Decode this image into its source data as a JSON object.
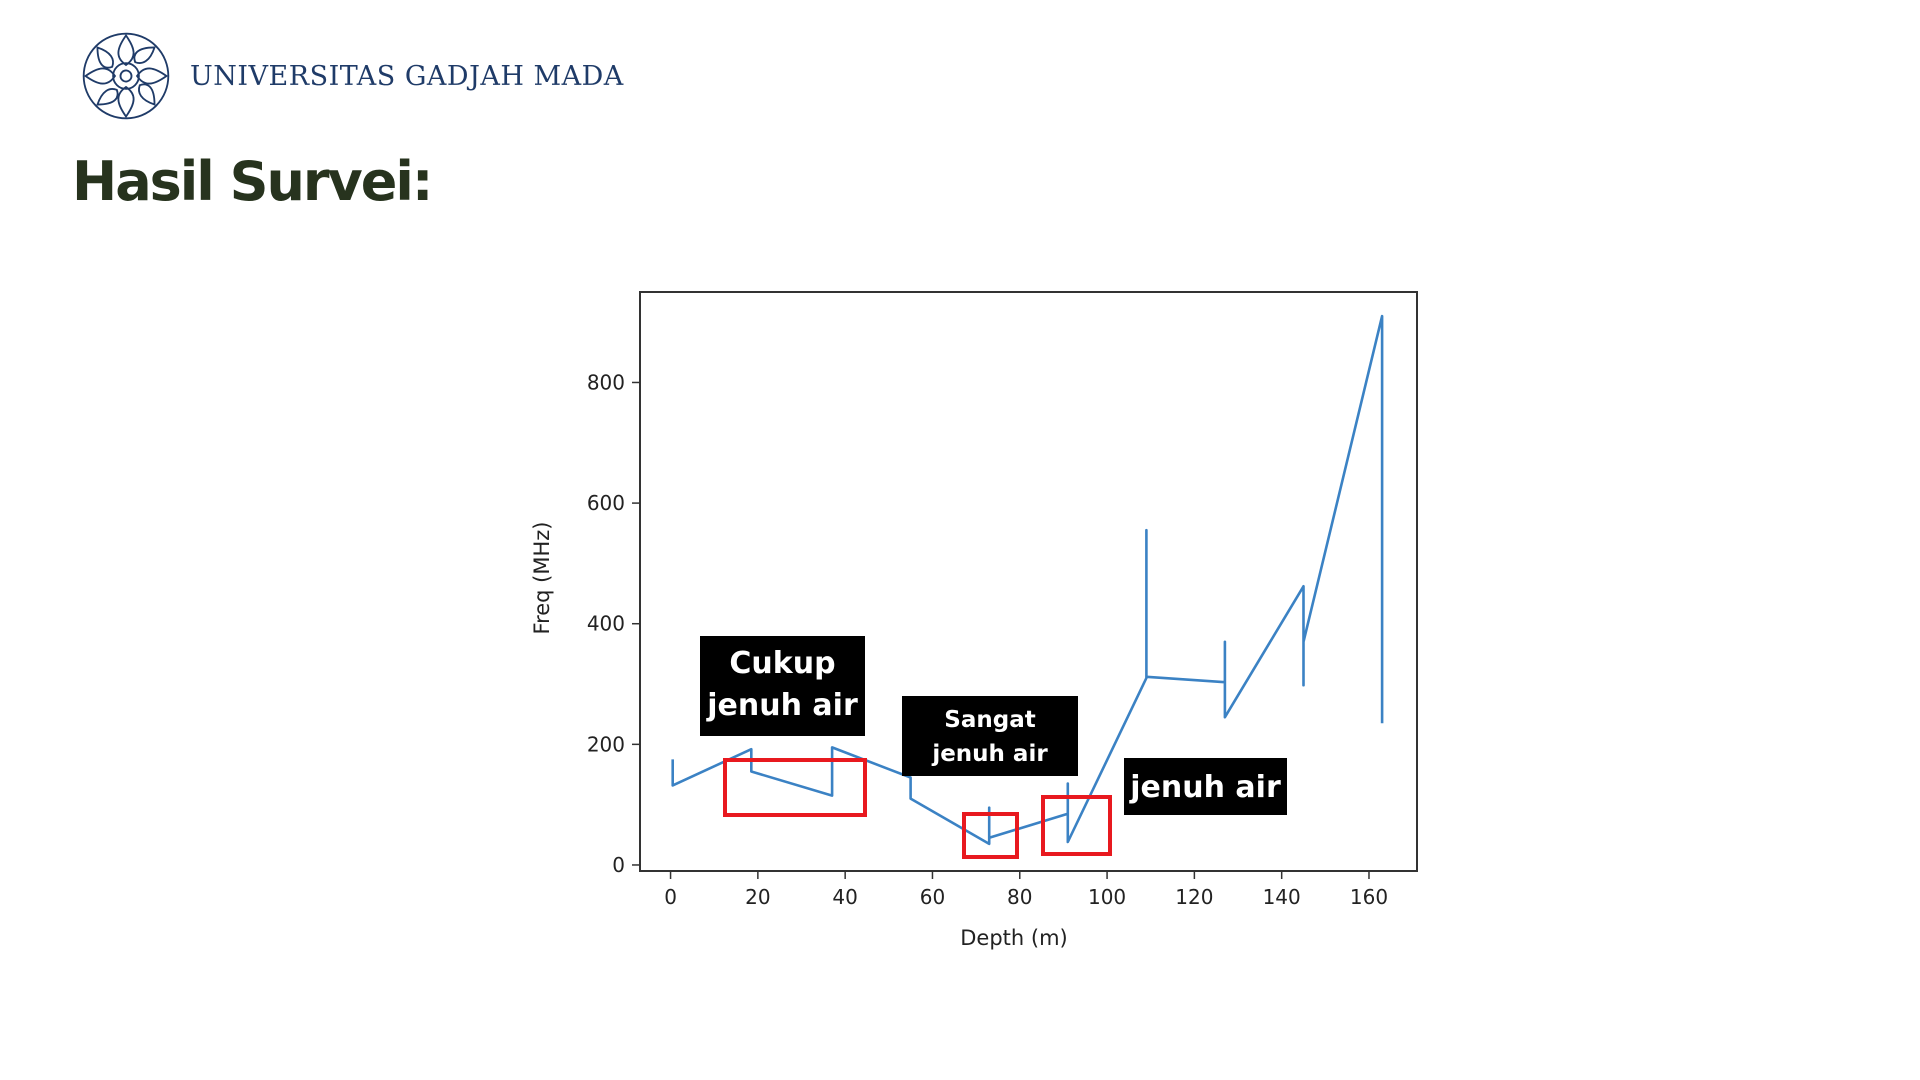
{
  "header": {
    "institution": "UNIVERSITAS GADJAH MADA",
    "logo_icon": "ugm-seal-icon",
    "brand_color": "#1f3b68"
  },
  "slide": {
    "title": "Hasil Survei:",
    "title_color": "#27331e"
  },
  "chart_data": {
    "type": "line",
    "xlabel": "Depth (m)",
    "ylabel": "Freq (MHz)",
    "xlim": [
      -7,
      171
    ],
    "ylim": [
      -10,
      950
    ],
    "xticks": [
      0,
      20,
      40,
      60,
      80,
      100,
      120,
      140,
      160
    ],
    "yticks": [
      0,
      200,
      400,
      600,
      800
    ],
    "grid": false,
    "line_color": "#3b82c4",
    "series": [
      {
        "points": [
          [
            0.5,
            175
          ],
          [
            0.5,
            132
          ],
          [
            18.5,
            192
          ],
          [
            18.5,
            155
          ],
          [
            37,
            115
          ],
          [
            37,
            195
          ],
          [
            55,
            145
          ],
          [
            55,
            110
          ],
          [
            73,
            35
          ],
          [
            73,
            95
          ],
          [
            73,
            45
          ],
          [
            91,
            85
          ],
          [
            91,
            135
          ],
          [
            91,
            38
          ],
          [
            109,
            310
          ],
          [
            109,
            555
          ],
          [
            109,
            312
          ],
          [
            127,
            303
          ],
          [
            127,
            370
          ],
          [
            127,
            245
          ],
          [
            145,
            462
          ],
          [
            145,
            298
          ],
          [
            145,
            370
          ],
          [
            163,
            910
          ],
          [
            163,
            235
          ]
        ]
      }
    ],
    "annotations": [
      {
        "lines": [
          "Cukup",
          "jenuh air"
        ]
      },
      {
        "lines": [
          "Sangat",
          "jenuh air"
        ]
      },
      {
        "lines": [
          "jenuh air"
        ]
      }
    ],
    "highlight_color": "#e8191f",
    "label_bg": "#000000"
  }
}
